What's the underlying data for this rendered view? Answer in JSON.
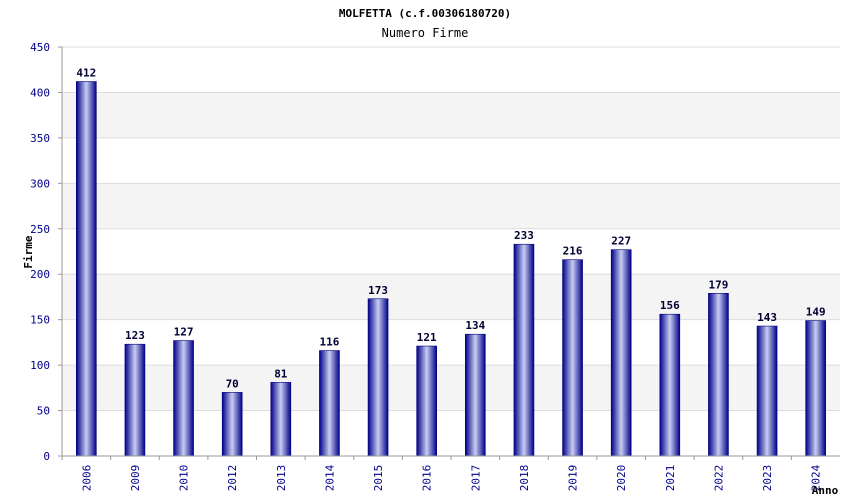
{
  "chart_data": {
    "type": "bar",
    "title": "MOLFETTA (c.f.00306180720)",
    "subtitle": "Numero Firme",
    "xlabel": "Anno",
    "ylabel": "Firme",
    "categories": [
      "2006",
      "2009",
      "2010",
      "2012",
      "2013",
      "2014",
      "2015",
      "2016",
      "2017",
      "2018",
      "2019",
      "2020",
      "2021",
      "2022",
      "2023",
      "2024"
    ],
    "values": [
      412,
      123,
      127,
      70,
      81,
      116,
      173,
      121,
      134,
      233,
      216,
      227,
      156,
      179,
      143,
      149
    ],
    "value_labels": [
      "412",
      "123",
      "127",
      "70",
      "81",
      "116",
      "173",
      "121",
      "134",
      "233",
      "216",
      "227",
      "156",
      "179",
      "143",
      "149"
    ],
    "ylim": [
      0,
      450
    ],
    "yticks": [
      "0",
      "50",
      "100",
      "150",
      "200",
      "250",
      "300",
      "350",
      "400",
      "450"
    ],
    "grid": true,
    "colors": {
      "bar_dark": "#00008b",
      "bar_light": "#c8cdf0",
      "band": "#f4f4f4",
      "grid": "#dddddd",
      "tick_text": "#00008b"
    }
  }
}
